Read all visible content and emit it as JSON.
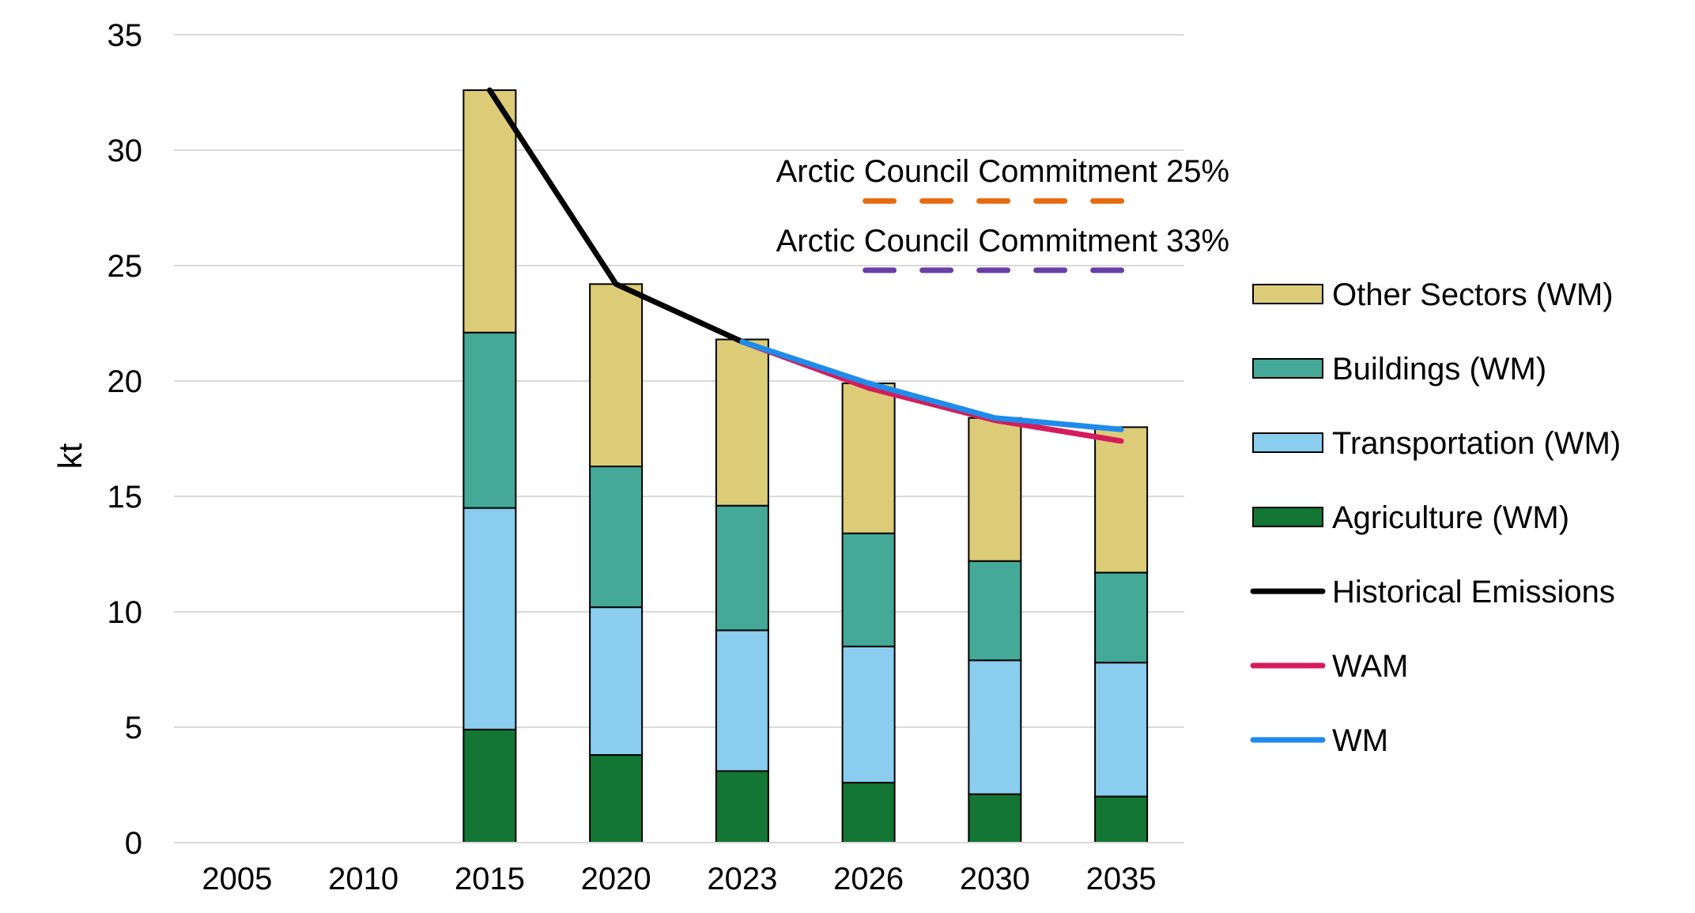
{
  "chart_data": {
    "type": "bar",
    "stacked": true,
    "title": "",
    "xlabel": "",
    "ylabel": "kt",
    "ylim": [
      0,
      35
    ],
    "yticks": [
      0,
      5,
      10,
      15,
      20,
      25,
      30,
      35
    ],
    "grid": true,
    "legend_position": "right",
    "categories": [
      "2005",
      "2010",
      "2015",
      "2020",
      "2023",
      "2026",
      "2030",
      "2035"
    ],
    "series": [
      {
        "name": "Agriculture (WM)",
        "color": "#137634",
        "values": [
          null,
          null,
          4.9,
          3.8,
          3.1,
          2.6,
          2.1,
          2.0
        ]
      },
      {
        "name": "Transportation (WM)",
        "color": "#8ACDEE",
        "values": [
          null,
          null,
          9.6,
          6.4,
          6.1,
          5.9,
          5.8,
          5.8
        ]
      },
      {
        "name": "Buildings (WM)",
        "color": "#44A997",
        "values": [
          null,
          null,
          7.6,
          6.1,
          5.4,
          4.9,
          4.3,
          3.9
        ]
      },
      {
        "name": "Other Sectors (WM)",
        "color": "#DCCC78",
        "values": [
          null,
          null,
          10.5,
          7.9,
          7.2,
          6.5,
          6.2,
          6.3
        ]
      }
    ],
    "lines": [
      {
        "name": "Historical Emissions",
        "color": "#000000",
        "categories": [
          "2015",
          "2020",
          "2023"
        ],
        "values": [
          32.6,
          24.2,
          21.7
        ]
      },
      {
        "name": "WAM",
        "color": "#D41C5C",
        "categories": [
          "2023",
          "2026",
          "2030",
          "2035"
        ],
        "values": [
          21.7,
          19.7,
          18.3,
          17.4
        ]
      },
      {
        "name": "WM",
        "color": "#1F8BEA",
        "categories": [
          "2023",
          "2026",
          "2030",
          "2035"
        ],
        "values": [
          21.7,
          19.9,
          18.4,
          17.9
        ]
      }
    ],
    "reference_lines": [
      {
        "name": "Arctic Council Commitment 25%",
        "color": "#E86A10",
        "value": 27.8,
        "from_category": "2026",
        "to_category": "2035"
      },
      {
        "name": "Arctic Council Commitment 33%",
        "color": "#6A3FA6",
        "value": 24.8,
        "from_category": "2026",
        "to_category": "2035"
      }
    ],
    "legend": [
      "Other Sectors (WM)",
      "Buildings (WM)",
      "Transportation (WM)",
      "Agriculture (WM)",
      "Historical Emissions",
      "WAM",
      "WM"
    ]
  }
}
